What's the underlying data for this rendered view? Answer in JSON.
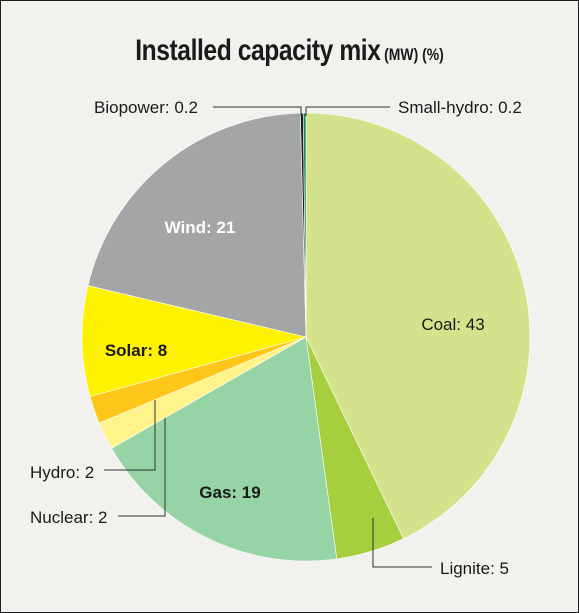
{
  "chart_data": {
    "type": "pie",
    "title": "Installed capacity mix",
    "title_unit": "(MW) (%)",
    "slices": [
      {
        "label": "Coal",
        "value": 43,
        "color": "#d4e28c"
      },
      {
        "label": "Lignite",
        "value": 5,
        "color": "#a6cf3e"
      },
      {
        "label": "Gas",
        "value": 19,
        "color": "#96d4a6"
      },
      {
        "label": "Nuclear",
        "value": 2,
        "color": "#fff38a"
      },
      {
        "label": "Hydro",
        "value": 2,
        "color": "#ffc61a"
      },
      {
        "label": "Solar",
        "value": 8,
        "color": "#fff200"
      },
      {
        "label": "Wind",
        "value": 21,
        "color": "#a4a5a7"
      },
      {
        "label": "Biopower",
        "value": 0.2,
        "color": "#1a1a1a"
      },
      {
        "label": "Small-hydro",
        "value": 0.2,
        "color": "#1a8a5a"
      }
    ],
    "slice_labels": {
      "Coal": "Coal: 43",
      "Lignite": "Lignite: 5",
      "Gas": "Gas: 19",
      "Nuclear": "Nuclear: 2",
      "Hydro": "Hydro: 2",
      "Solar": "Solar: 8",
      "Wind": "Wind: 21",
      "Biopower": "Biopower: 0.2",
      "Small-hydro": "Small-hydro: 0.2"
    }
  }
}
